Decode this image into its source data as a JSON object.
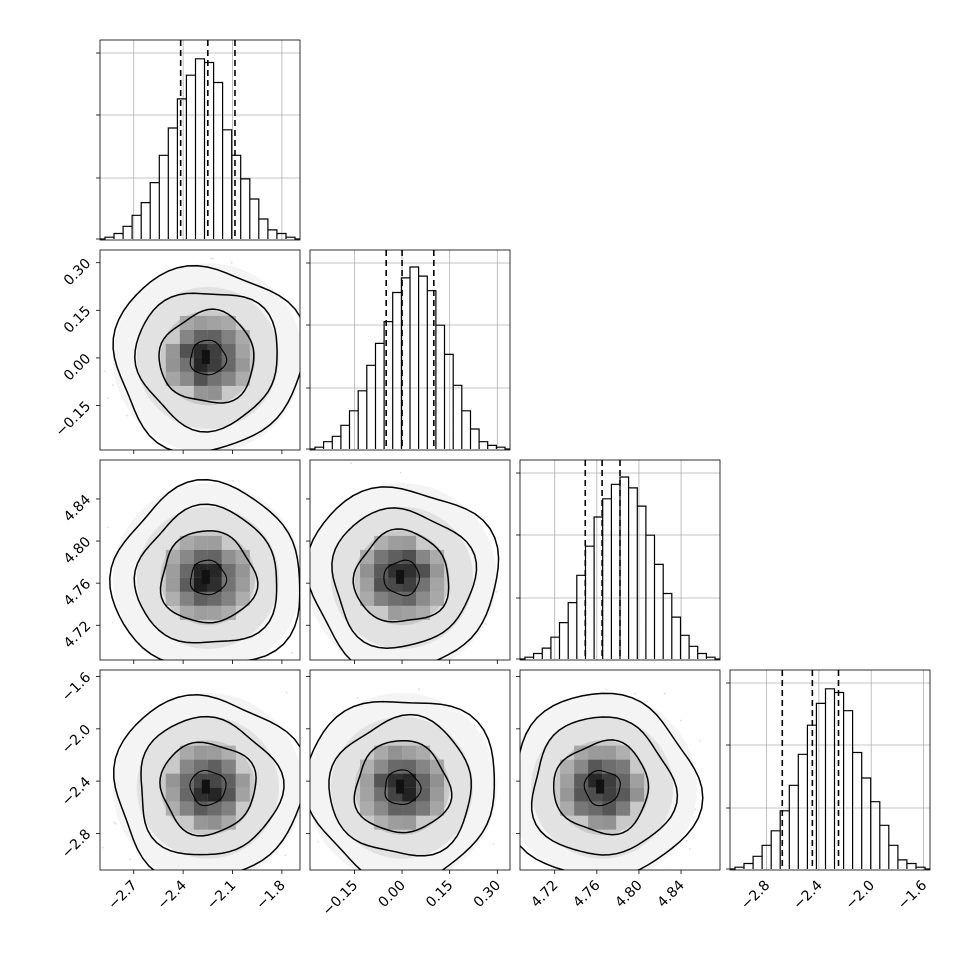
{
  "chart_data": {
    "type": "corner",
    "params": [
      {
        "ticks": [
          "-2.7",
          "-2.4",
          "-2.1",
          "-1.8"
        ],
        "tick_values": [
          -2.7,
          -2.4,
          -2.1,
          -1.8
        ],
        "range": [
          -2.905,
          -1.69
        ],
        "quantiles": [
          -2.415,
          -2.25,
          -2.085
        ]
      },
      {
        "ticks": [
          "-0.15",
          "0.00",
          "0.15",
          "0.30"
        ],
        "tick_values": [
          -0.15,
          0.0,
          0.15,
          0.3
        ],
        "range": [
          -0.29,
          0.34
        ],
        "quantiles": [
          -0.05,
          0.0,
          0.1
        ]
      },
      {
        "ticks": [
          "4.72",
          "4.76",
          "4.80",
          "4.84"
        ],
        "tick_values": [
          4.72,
          4.76,
          4.8,
          4.84
        ],
        "range": [
          4.687,
          4.877
        ],
        "quantiles": [
          4.749,
          4.765,
          4.782
        ]
      },
      {
        "ticks": [
          "-2.8",
          "-2.4",
          "-2.0",
          "-1.6"
        ],
        "tick_values": [
          -2.8,
          -2.4,
          -2.0,
          -1.6
        ],
        "range": [
          -3.08,
          -1.55
        ],
        "quantiles": [
          -2.68,
          -2.45,
          -2.25
        ]
      }
    ],
    "histograms": [
      [
        1,
        3,
        7,
        13,
        20,
        31,
        46,
        61,
        77,
        90,
        99,
        97,
        86,
        60,
        46,
        33,
        22,
        11,
        5,
        3,
        1
      ],
      [
        1,
        4,
        7,
        13,
        21,
        32,
        46,
        58,
        70,
        86,
        94,
        100,
        95,
        87,
        68,
        52,
        35,
        21,
        11,
        4,
        2,
        1
      ],
      [
        1,
        3,
        6,
        12,
        20,
        31,
        46,
        62,
        78,
        88,
        96,
        100,
        94,
        84,
        68,
        52,
        36,
        23,
        13,
        7,
        3,
        1
      ],
      [
        1,
        3,
        7,
        13,
        21,
        32,
        46,
        63,
        79,
        91,
        99,
        97,
        87,
        64,
        50,
        37,
        24,
        13,
        5,
        3,
        1
      ]
    ],
    "contour_levels": [
      0.5,
      1.0,
      1.5,
      2.0
    ],
    "grid": true,
    "xlabel": "",
    "ylabel": "",
    "title": ""
  }
}
